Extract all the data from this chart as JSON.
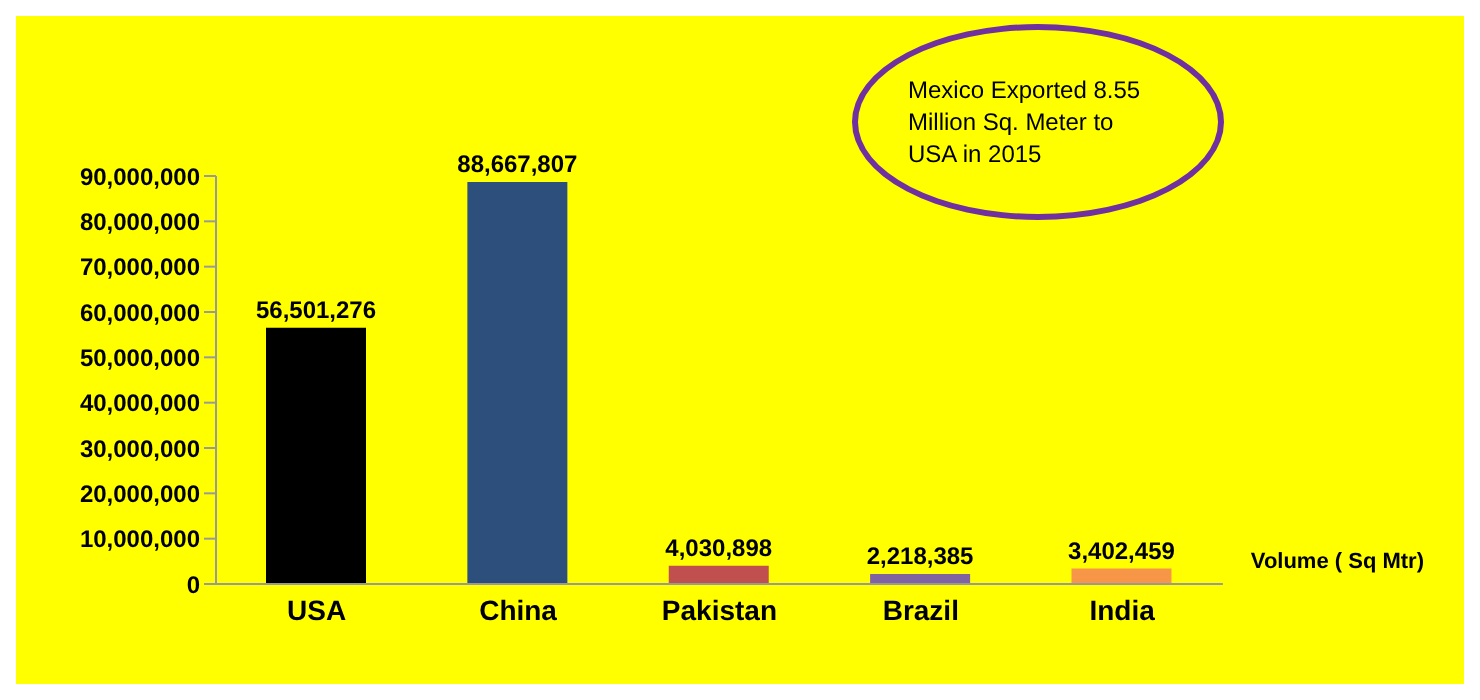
{
  "chart_data": {
    "type": "bar",
    "categories": [
      "USA",
      "China",
      "Pakistan",
      "Brazil",
      "India"
    ],
    "series": [
      {
        "name": "Volume ( Sq Mtr)",
        "values": [
          56501276,
          88667807,
          4030898,
          2218385,
          3402459
        ],
        "value_labels": [
          "56,501,276",
          "88,667,807",
          "4,030,898",
          "2,218,385",
          "3,402,459"
        ],
        "colors": [
          "#000000",
          "#2c4f7c",
          "#c0504d",
          "#8064a2",
          "#f79646"
        ]
      }
    ],
    "ylim": [
      0,
      90000000
    ],
    "yticks": [
      0,
      {
        "value": 10000000,
        "label": "10,000,000"
      },
      {
        "value": 20000000,
        "label": "20,000,000"
      },
      {
        "value": 30000000,
        "label": "30,000,000"
      },
      {
        "value": 40000000,
        "label": "40,000,000"
      },
      {
        "value": 50000000,
        "label": "50,000,000"
      },
      {
        "value": 60000000,
        "label": "60,000,000"
      },
      {
        "value": 70000000,
        "label": "70,000,000"
      },
      {
        "value": 80000000,
        "label": "80,000,000"
      },
      {
        "value": 90000000,
        "label": "90,000,000"
      }
    ],
    "grid": false,
    "legend": "right",
    "annotations": [
      "Mexico Exported 8.55 Million Sq. Meter to USA in 2015"
    ]
  }
}
